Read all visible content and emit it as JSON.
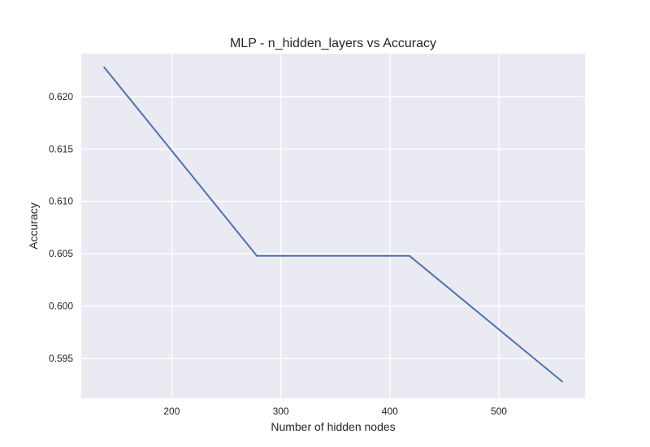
{
  "chart_data": {
    "type": "line",
    "title": "MLP - n_hidden_layers vs Accuracy",
    "xlabel": "Number of hidden nodes",
    "ylabel": "Accuracy",
    "x": [
      138,
      278,
      418,
      558
    ],
    "series": [
      {
        "values": [
          0.6228,
          0.6048,
          0.6048,
          0.5928
        ],
        "color": "#4c72b0"
      }
    ],
    "xlim": [
      117,
      579
    ],
    "ylim": [
      0.5912,
      0.6241
    ],
    "xticks": [
      200,
      300,
      400,
      500
    ],
    "xtick_labels": [
      "200",
      "300",
      "400",
      "500"
    ],
    "yticks": [
      0.595,
      0.6,
      0.605,
      0.61,
      0.615,
      0.62
    ],
    "ytick_labels": [
      "0.595",
      "0.600",
      "0.605",
      "0.610",
      "0.615",
      "0.620"
    ],
    "grid": true,
    "background_color": "#eaeaf2",
    "grid_color": "#ffffff"
  }
}
